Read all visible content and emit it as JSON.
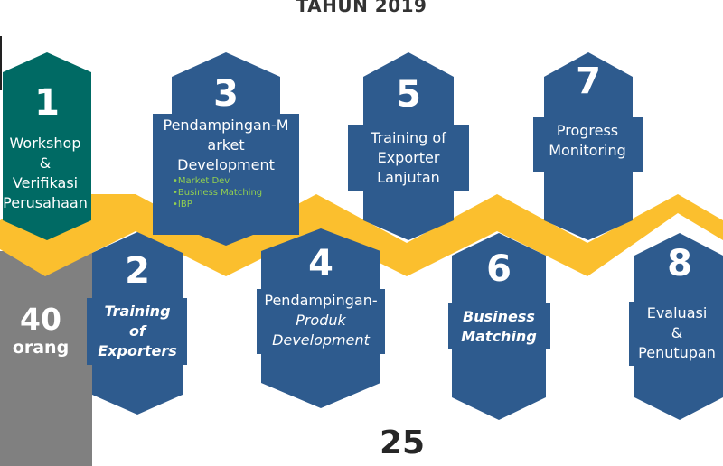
{
  "title": "TAHUN 2019",
  "colors": {
    "teal": "#006a64",
    "navy": "#2e5b8e",
    "gold": "#fbbf2e",
    "gray": "#808080",
    "sub_green": "#92d050"
  },
  "participants": {
    "count": "40",
    "unit": "orang"
  },
  "steps": [
    {
      "num": "1",
      "lines": [
        "Workshop",
        "&",
        "Verifikasi",
        "Perusahaan"
      ]
    },
    {
      "num": "2",
      "lines": [
        "Training",
        "of",
        "Exporters"
      ]
    },
    {
      "num": "3",
      "lines": [
        "Pendampingan-M",
        "arket",
        "Development"
      ]
    },
    {
      "num": "4",
      "lines": [
        "Pendampingan-",
        "Produk",
        "Development"
      ]
    },
    {
      "num": "5",
      "lines": [
        "Training of",
        "Exporter",
        "Lanjutan"
      ]
    },
    {
      "num": "6",
      "lines": [
        "Business",
        "Matching"
      ]
    },
    {
      "num": "7",
      "lines": [
        "Progress",
        "Monitoring"
      ]
    },
    {
      "num": "8",
      "lines": [
        "Evaluasi",
        "&",
        "Penutupan"
      ]
    }
  ],
  "step3_subitems": [
    "•Market Dev",
    "•Business Matching",
    "•IBP"
  ],
  "footer_number": "25"
}
